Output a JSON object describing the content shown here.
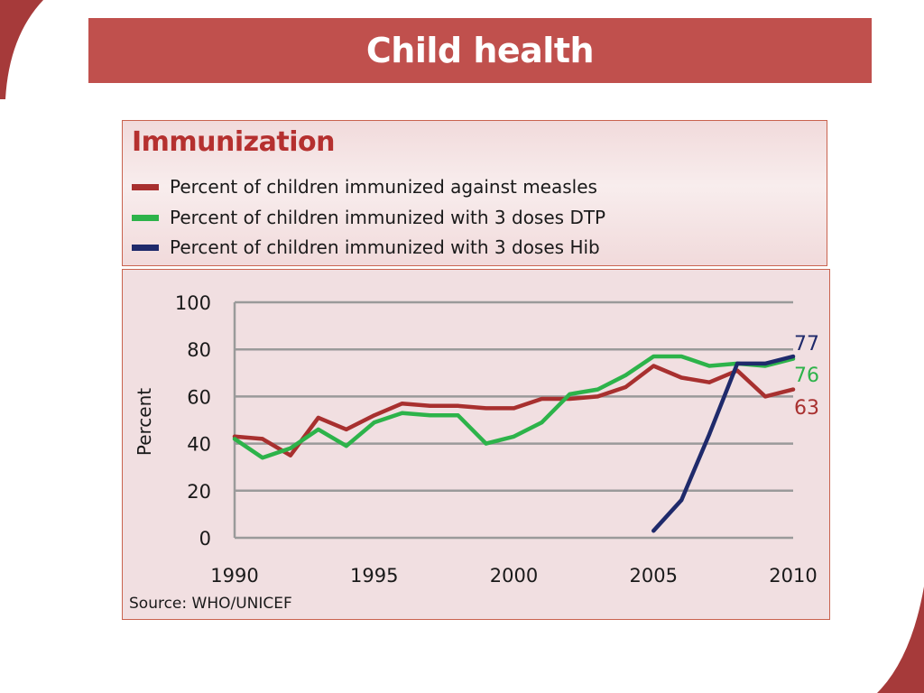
{
  "slide": {
    "title": "Child health",
    "accent_color": "#c0504d",
    "dark_accent_color": "#8b1f24"
  },
  "legend": {
    "title": "Immunization",
    "title_color": "#b5302f"
  },
  "source": "Source: WHO/UNICEF",
  "chart_data": {
    "type": "line",
    "title": "Immunization",
    "ylabel": "Percent",
    "xlabel": "",
    "xlim": [
      1990,
      2010
    ],
    "ylim": [
      0,
      100
    ],
    "xticks": [
      1990,
      1995,
      2000,
      2005,
      2010
    ],
    "yticks": [
      0,
      20,
      40,
      60,
      80,
      100
    ],
    "grid": true,
    "legend_position": "top",
    "series": [
      {
        "name": "Percent of children immunized against measles",
        "color": "#a8302f",
        "end_label": "63",
        "x": [
          1990,
          1991,
          1992,
          1993,
          1994,
          1995,
          1996,
          1997,
          1998,
          1999,
          2000,
          2001,
          2002,
          2003,
          2004,
          2005,
          2006,
          2007,
          2008,
          2009,
          2010
        ],
        "values": [
          43,
          42,
          35,
          51,
          46,
          52,
          57,
          56,
          56,
          55,
          55,
          59,
          59,
          60,
          64,
          73,
          68,
          66,
          71,
          60,
          63
        ]
      },
      {
        "name": "Percent of children immunized with 3 doses DTP",
        "color": "#2db34a",
        "end_label": "76",
        "x": [
          1990,
          1991,
          1992,
          1993,
          1994,
          1995,
          1996,
          1997,
          1998,
          1999,
          2000,
          2001,
          2002,
          2003,
          2004,
          2005,
          2006,
          2007,
          2008,
          2009,
          2010
        ],
        "values": [
          42,
          34,
          38,
          46,
          39,
          49,
          53,
          52,
          52,
          40,
          43,
          49,
          61,
          63,
          69,
          77,
          77,
          73,
          74,
          73,
          76
        ]
      },
      {
        "name": "Percent of children immunized with 3 doses Hib",
        "color": "#1f2a6b",
        "end_label": "77",
        "x": [
          2005,
          2006,
          2007,
          2008,
          2009,
          2010
        ],
        "values": [
          3,
          16,
          44,
          74,
          74,
          77
        ]
      }
    ]
  }
}
